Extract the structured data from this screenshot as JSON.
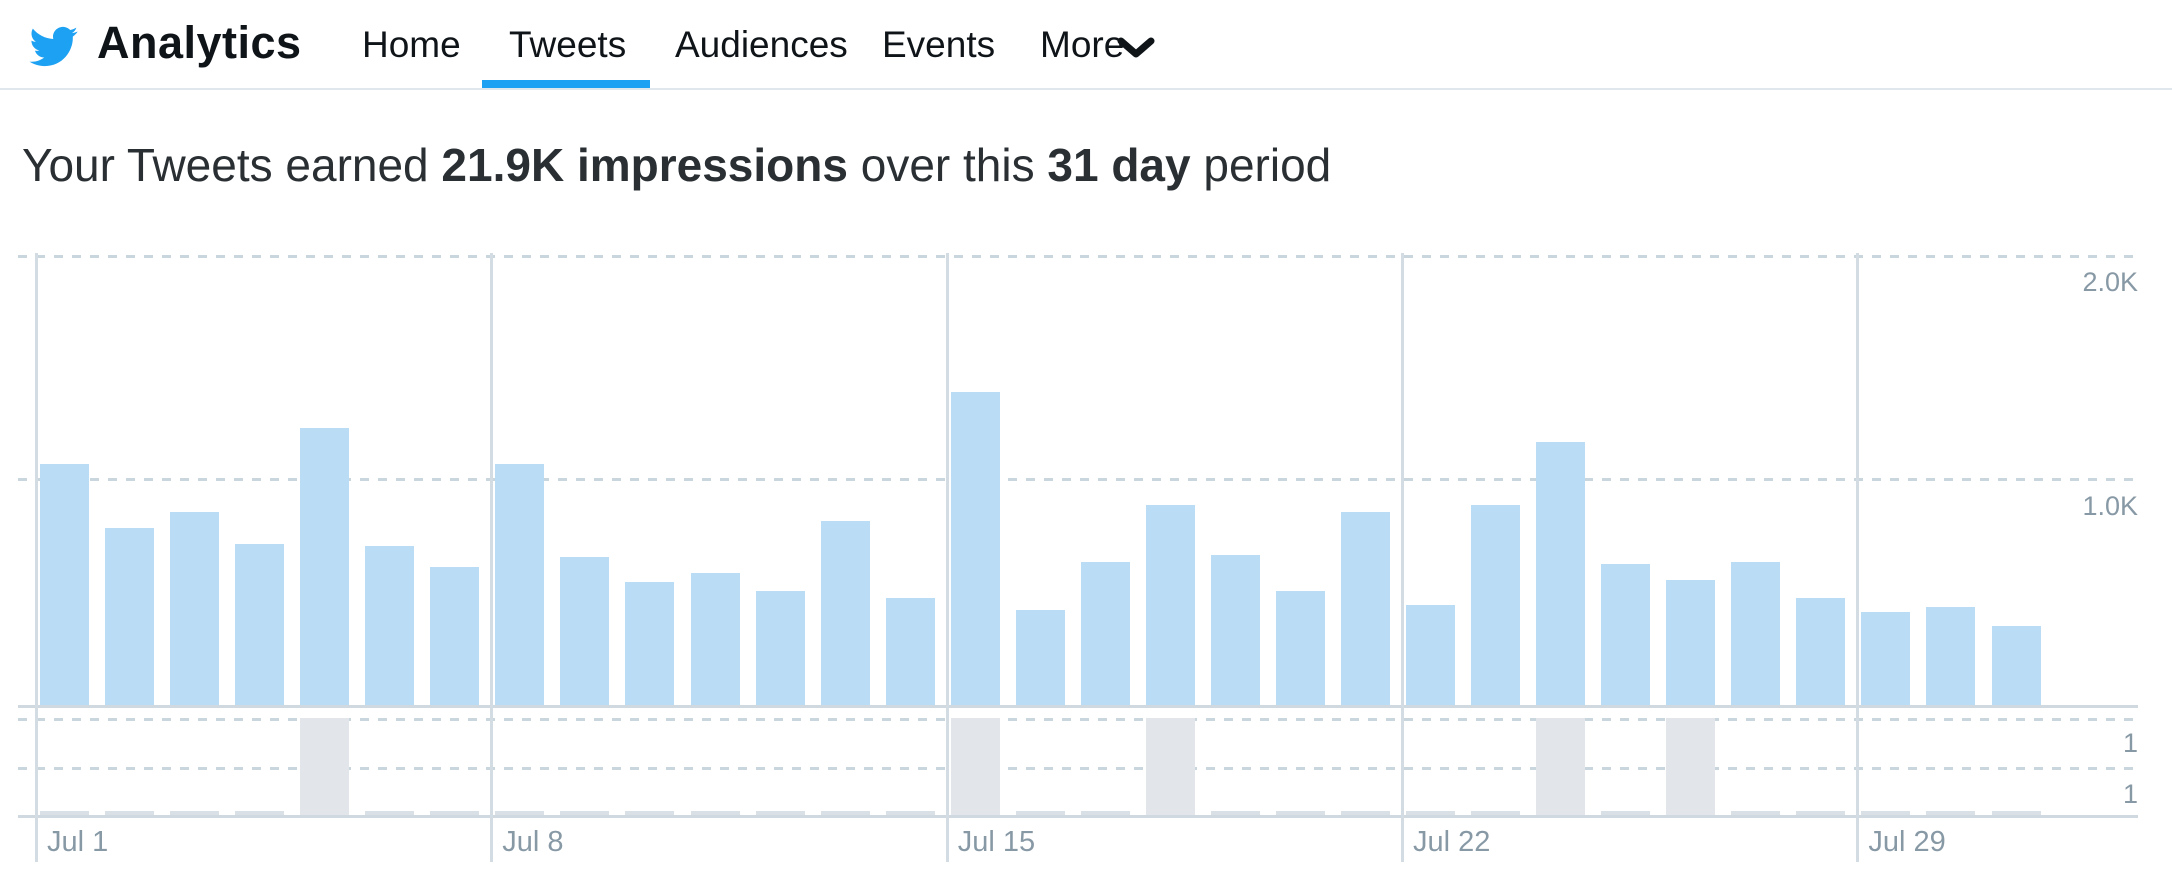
{
  "header": {
    "brand": "Analytics",
    "nav": [
      {
        "label": "Home",
        "active": false
      },
      {
        "label": "Tweets",
        "active": true
      },
      {
        "label": "Audiences",
        "active": false
      },
      {
        "label": "Events",
        "active": false
      },
      {
        "label": "More",
        "active": false,
        "has_dropdown": true
      }
    ],
    "accent_color": "#1DA1F2"
  },
  "summary": {
    "prefix": "Your Tweets earned ",
    "impressions_bold": "21.9K impressions",
    "middle": " over this ",
    "period_bold": "31 day",
    "suffix": " period"
  },
  "chart_data": {
    "type": "bar",
    "title": "Daily tweet impressions over 31 day period",
    "categories": [
      "Jul 1",
      "Jul 2",
      "Jul 3",
      "Jul 4",
      "Jul 5",
      "Jul 6",
      "Jul 7",
      "Jul 8",
      "Jul 9",
      "Jul 10",
      "Jul 11",
      "Jul 12",
      "Jul 13",
      "Jul 14",
      "Jul 15",
      "Jul 16",
      "Jul 17",
      "Jul 18",
      "Jul 19",
      "Jul 20",
      "Jul 21",
      "Jul 22",
      "Jul 23",
      "Jul 24",
      "Jul 25",
      "Jul 26",
      "Jul 27",
      "Jul 28",
      "Jul 29",
      "Jul 30",
      "Jul 31"
    ],
    "series": [
      {
        "name": "Impressions",
        "values": [
          1060,
          780,
          850,
          710,
          1220,
          700,
          610,
          1060,
          650,
          540,
          580,
          500,
          810,
          470,
          1380,
          420,
          630,
          880,
          660,
          500,
          850,
          440,
          880,
          1160,
          620,
          550,
          630,
          470,
          410,
          430,
          350
        ]
      },
      {
        "name": "Tweets",
        "values": [
          0,
          0,
          0,
          0,
          2,
          0,
          0,
          0,
          0,
          0,
          0,
          0,
          0,
          0,
          2,
          0,
          0,
          2,
          0,
          0,
          0,
          0,
          0,
          2,
          0,
          2,
          0,
          0,
          0,
          0,
          0
        ]
      }
    ],
    "ylim": [
      0,
      2000
    ],
    "y_tick_labels": [
      "2.0K",
      "1.0K"
    ],
    "tweets_axis_tick_labels": [
      "1",
      "1"
    ],
    "x_tick_labels": [
      "Jul 1",
      "Jul 8",
      "Jul 15",
      "Jul 22",
      "Jul 29"
    ],
    "grid": "on",
    "legend_position": "none",
    "colors": {
      "impressions_bar": "#BADCF4",
      "tweets_bar": "#E2E6EB",
      "gridline": "#C9D6DE",
      "axis_text": "#8899A6"
    }
  }
}
